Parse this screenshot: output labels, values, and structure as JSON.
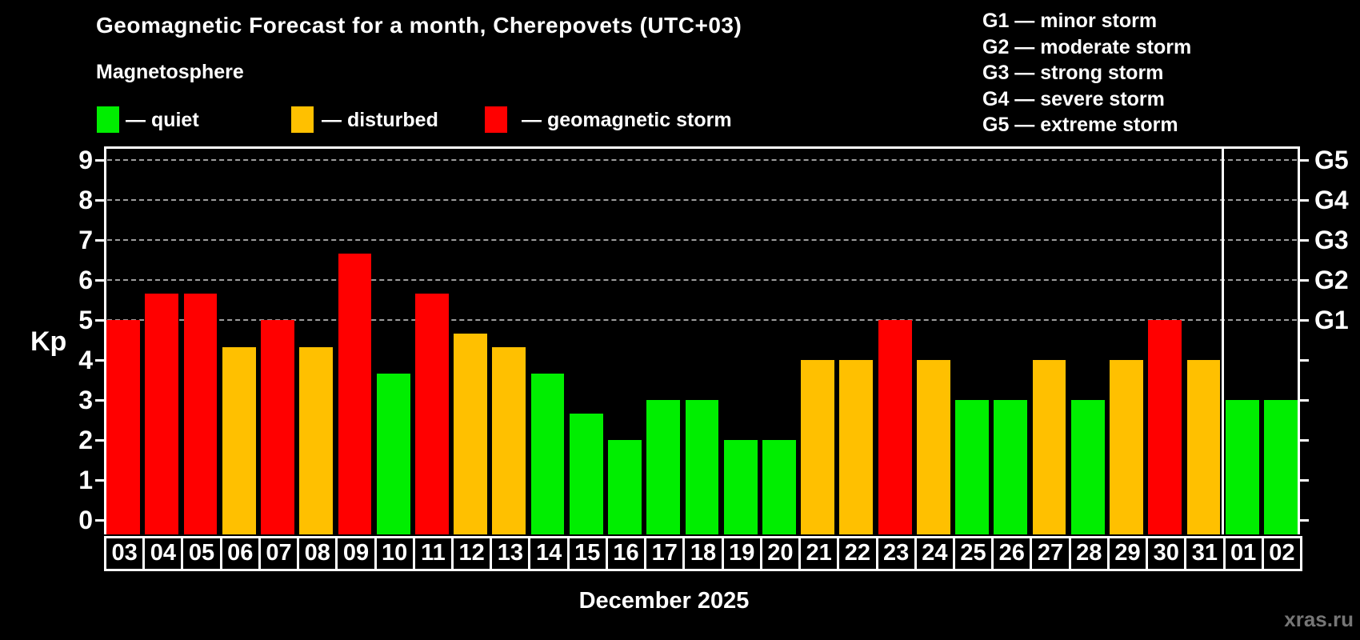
{
  "title": "Geomagnetic Forecast for a month, Cherepovets (UTC+03)",
  "subtitle": "Magnetosphere",
  "legend": {
    "items": [
      {
        "label": "— quiet",
        "status": "quiet"
      },
      {
        "label": "— disturbed",
        "status": "disturbed"
      },
      {
        "label": "— geomagnetic storm",
        "status": "storm"
      }
    ]
  },
  "colors": {
    "quiet": "#00ee00",
    "disturbed": "#ffc000",
    "storm": "#ff0000",
    "gridline": "#9e9e9e",
    "frame": "#ffffff",
    "watermark": "#767676"
  },
  "g_scale_legend": [
    "G1 — minor storm",
    "G2 — moderate storm",
    "G3 — strong storm",
    "G4 — severe storm",
    "G5 — extreme storm"
  ],
  "chart_data": {
    "type": "bar",
    "title": "Geomagnetic Forecast for a month, Cherepovets (UTC+03)",
    "xlabel": "December 2025",
    "ylabel": "Kp",
    "ylim": [
      0,
      9.35
    ],
    "grid": "horizontal dashed lines at Kp 5,6,7,8,9 only",
    "legend_position": "top-left above plot; G-scale legend top-right",
    "categories": [
      "03",
      "04",
      "05",
      "06",
      "07",
      "08",
      "09",
      "10",
      "11",
      "12",
      "13",
      "14",
      "15",
      "16",
      "17",
      "18",
      "19",
      "20",
      "21",
      "22",
      "23",
      "24",
      "25",
      "26",
      "27",
      "28",
      "29",
      "30",
      "31",
      "01",
      "02"
    ],
    "values": [
      5,
      5.67,
      5.67,
      4.33,
      5,
      4.33,
      6.67,
      3.67,
      5.67,
      4.67,
      4.33,
      3.67,
      2.67,
      2,
      3,
      3,
      2,
      2,
      4,
      4,
      5,
      4,
      3,
      3,
      4,
      3,
      4,
      5,
      4,
      3,
      3
    ],
    "statuses": [
      "storm",
      "storm",
      "storm",
      "disturbed",
      "storm",
      "disturbed",
      "storm",
      "quiet",
      "storm",
      "disturbed",
      "disturbed",
      "quiet",
      "quiet",
      "quiet",
      "quiet",
      "quiet",
      "quiet",
      "quiet",
      "disturbed",
      "disturbed",
      "storm",
      "disturbed",
      "quiet",
      "quiet",
      "disturbed",
      "quiet",
      "disturbed",
      "storm",
      "disturbed",
      "quiet",
      "quiet"
    ],
    "y_ticks": [
      0,
      1,
      2,
      3,
      4,
      5,
      6,
      7,
      8,
      9
    ],
    "grid_kp": [
      5,
      6,
      7,
      8,
      9
    ],
    "right_axis": [
      {
        "label": "G1",
        "kp": 5
      },
      {
        "label": "G2",
        "kp": 6
      },
      {
        "label": "G3",
        "kp": 7
      },
      {
        "label": "G4",
        "kp": 8
      },
      {
        "label": "G5",
        "kp": 9
      }
    ],
    "month_divider_after_category": "31"
  },
  "footer": {
    "month_label": "December 2025",
    "watermark": "xras.ru"
  }
}
